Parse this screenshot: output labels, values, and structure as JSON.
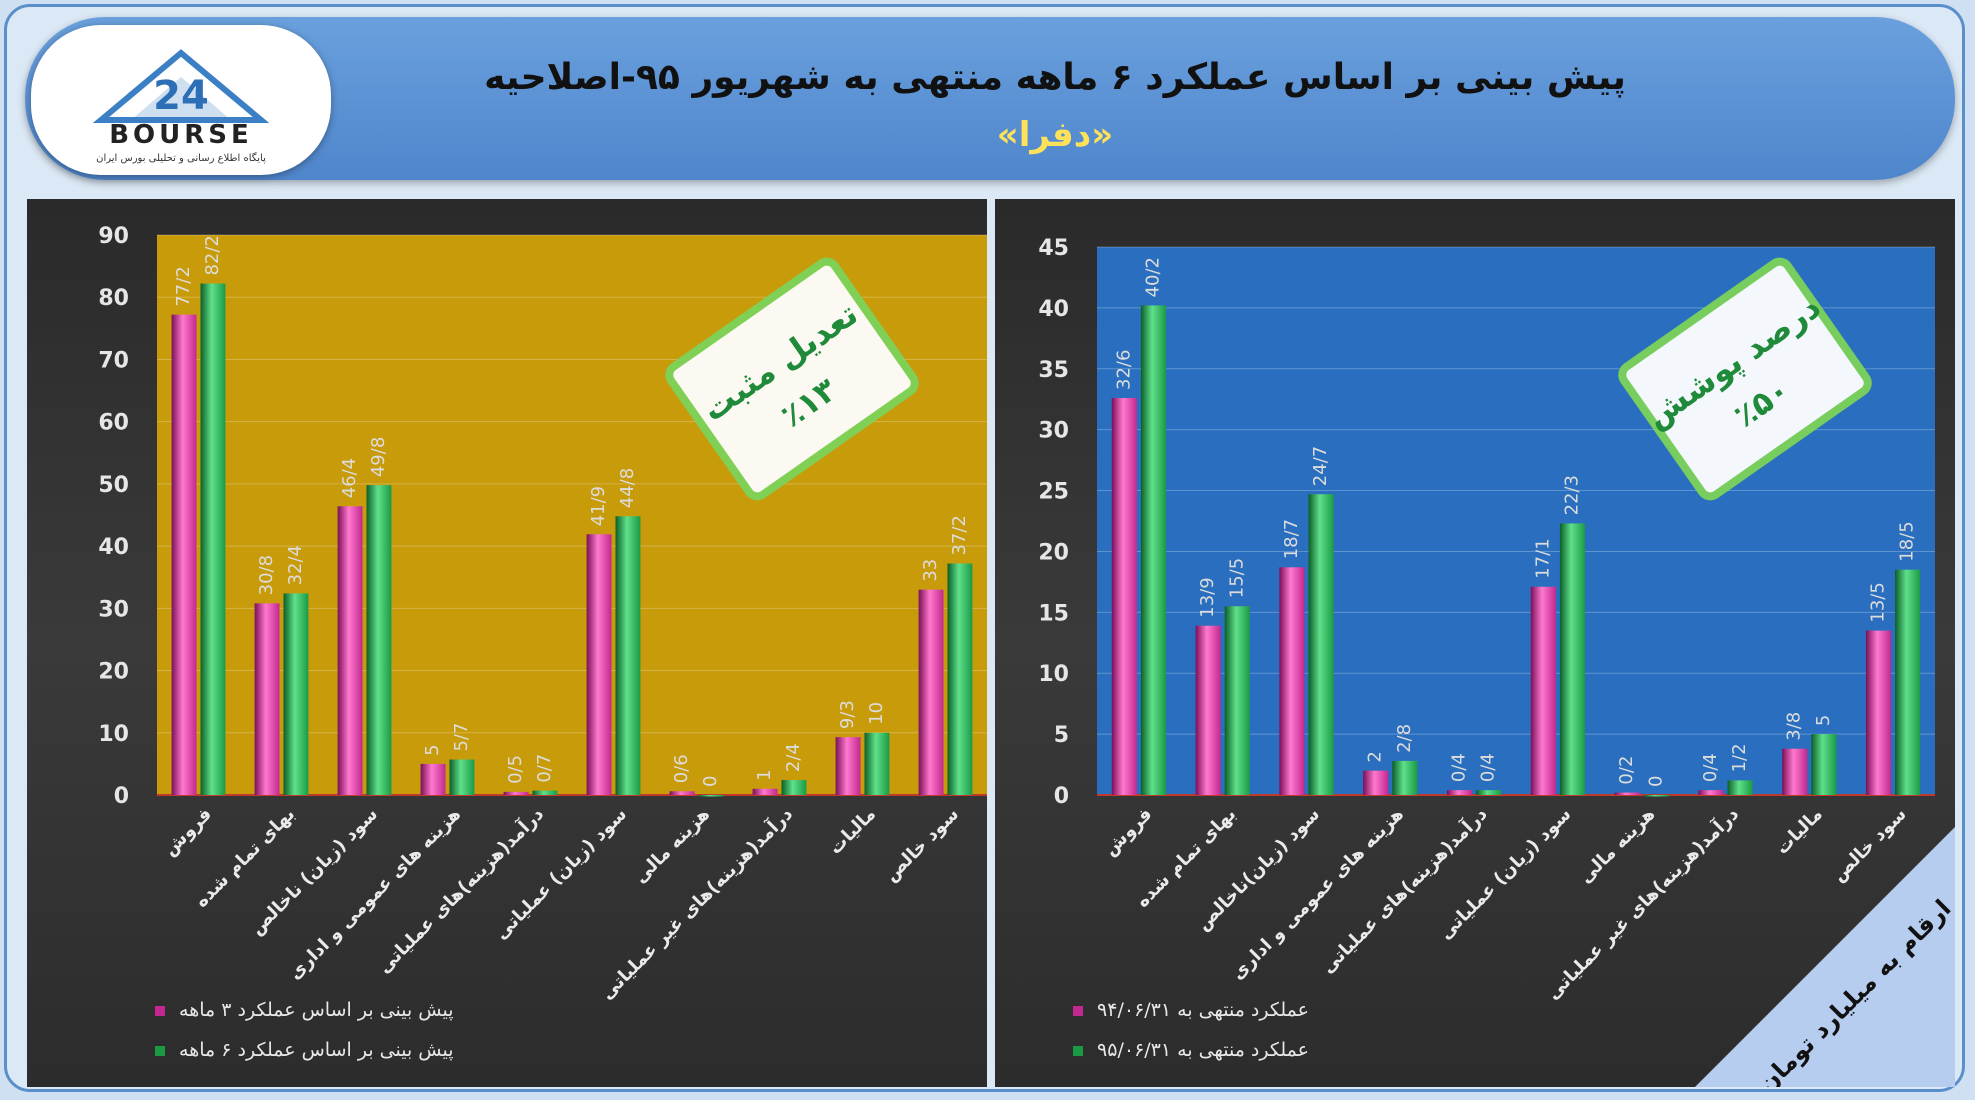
{
  "header": {
    "title": "پیش بینی بر اساس عملکرد ۶ ماهه منتهی به شهریور ۹۵-اصلاحیه",
    "subtitle": "«دفرا»",
    "logo_number": "24",
    "logo_name": "BOURSE",
    "logo_tagline": "پایگاه اطلاع رسانی و تحلیلی بورس ایران"
  },
  "colors": {
    "magenta": "#c2288f",
    "green": "#1a9a45",
    "left_plot_bg": "#c89b0a",
    "right_plot_bg": "#2a6fbf"
  },
  "badges": {
    "left": {
      "line1": "تعدیل مثبت",
      "line2": "٪۱۳"
    },
    "right": {
      "line1": "درصد پوشش",
      "line2": "٪۵۰"
    }
  },
  "unit_note": "ارقام به میلیارد تومان",
  "chart_data": [
    {
      "type": "bar",
      "ylim": [
        0,
        90
      ],
      "yticks": [
        0,
        10,
        20,
        30,
        40,
        50,
        60,
        70,
        80,
        90
      ],
      "categories": [
        "فروش",
        "بهای تمام شده",
        "سود (زیان) ناخالص",
        "هزینه های عمومی و اداری",
        "درآمد(هزینه)های عملیاتی",
        "سود (زیان) عملیاتی",
        "هزینه مالی",
        "درآمد(هزینه)های غیر عملیاتی",
        "مالیات",
        "سود خالص"
      ],
      "series": [
        {
          "name": "پیش بینی بر اساس عملکرد ۳ ماهه",
          "values": [
            77.2,
            30.8,
            46.4,
            5,
            0.5,
            41.9,
            0.6,
            1,
            9.3,
            33
          ],
          "labels": [
            "77/2",
            "30/8",
            "46/4",
            "5",
            "0/5",
            "41/9",
            "0/6",
            "1",
            "9/3",
            "33"
          ]
        },
        {
          "name": "پیش بینی بر اساس عملکرد ۶ ماهه",
          "values": [
            82.2,
            32.4,
            49.8,
            5.7,
            0.7,
            44.8,
            0,
            2.4,
            10,
            37.2
          ],
          "labels": [
            "82/2",
            "32/4",
            "49/8",
            "5/7",
            "0/7",
            "44/8",
            "0",
            "2/4",
            "10",
            "37/2"
          ]
        }
      ]
    },
    {
      "type": "bar",
      "ylim": [
        0,
        45
      ],
      "yticks": [
        0,
        5,
        10,
        15,
        20,
        25,
        30,
        35,
        40,
        45
      ],
      "categories": [
        "فروش",
        "بهای تمام شده",
        "سود (زیان)ناخالص",
        "هزینه های عمومی و اداری",
        "درآمد(هزینه)های عملیاتی",
        "سود (زیان) عملیاتی",
        "هزینه مالی",
        "درآمد(هزینه)های غیر عملیاتی",
        "مالیات",
        "سود خالص"
      ],
      "series": [
        {
          "name": "عملکرد منتهی به ۹۴/۰۶/۳۱",
          "values": [
            32.6,
            13.9,
            18.7,
            2,
            0.4,
            17.1,
            0.2,
            0.4,
            3.8,
            13.5
          ],
          "labels": [
            "32/6",
            "13/9",
            "18/7",
            "2",
            "0/4",
            "17/1",
            "0/2",
            "0/4",
            "3/8",
            "13/5"
          ]
        },
        {
          "name": "عملکرد منتهی به ۹۵/۰۶/۳۱",
          "values": [
            40.2,
            15.5,
            24.7,
            2.8,
            0.4,
            22.3,
            0,
            1.2,
            5,
            18.5
          ],
          "labels": [
            "40/2",
            "15/5",
            "24/7",
            "2/8",
            "0/4",
            "22/3",
            "0",
            "1/2",
            "5",
            "18/5"
          ]
        }
      ]
    }
  ]
}
